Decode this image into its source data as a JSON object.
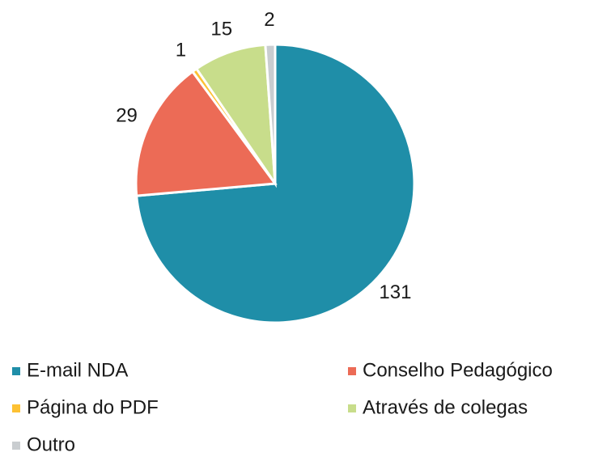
{
  "chart_data": {
    "type": "pie",
    "categories": [
      "E-mail NDA",
      "Conselho Pedagógico",
      "Página do PDF",
      "Através de colegas",
      "Outro"
    ],
    "values": [
      131,
      29,
      1,
      15,
      2
    ],
    "colors": [
      "#1f8ea8",
      "#ec6b56",
      "#fdc133",
      "#c8dd8b",
      "#c9cdd0"
    ],
    "legend": "bottom"
  }
}
